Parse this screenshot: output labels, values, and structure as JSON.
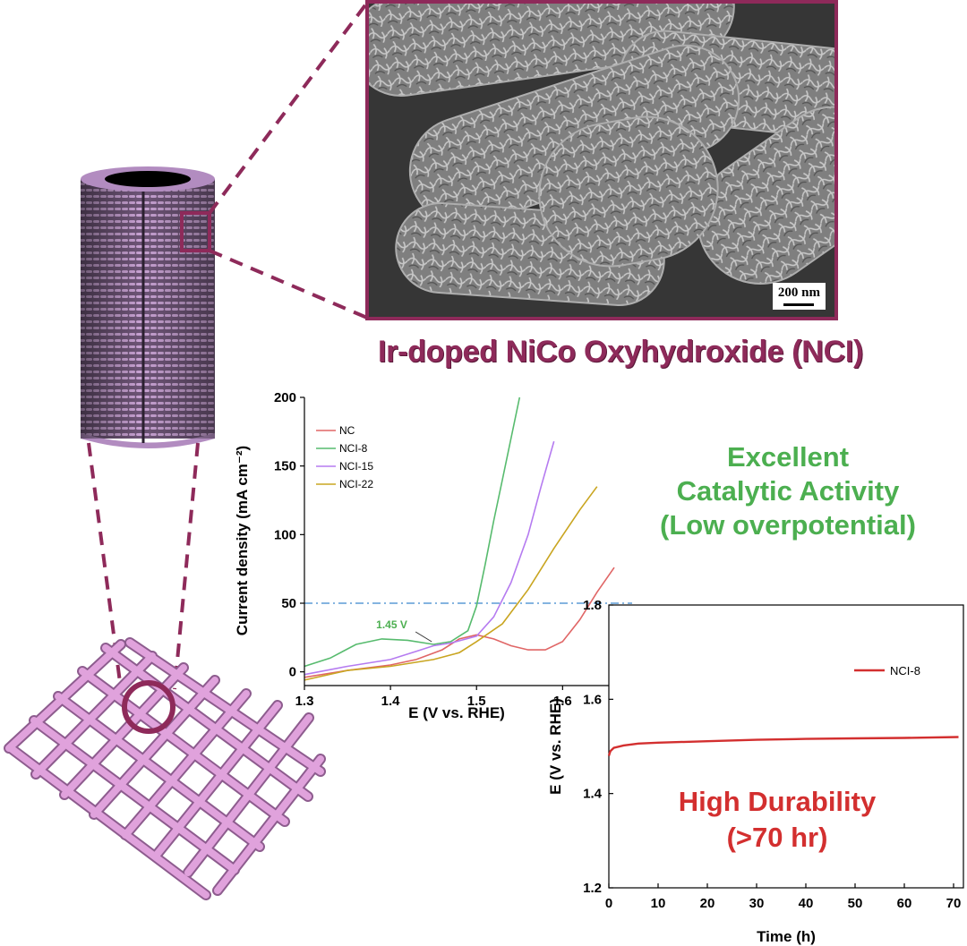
{
  "header": {
    "title": "Ir-doped NiCo Oxyhydroxide (NCI)",
    "scale_bar_label": "200 nm"
  },
  "callouts": {
    "activity_line1": "Excellent",
    "activity_line2": "Catalytic Activity",
    "activity_line3": "(Low overpotential)",
    "durability_line1": "High Durability",
    "durability_line2": "(>70 hr)"
  },
  "colors": {
    "accent": "#8e2a5a",
    "activity": "#4caf50",
    "durability": "#d32f2f",
    "NC": "#e06666",
    "NCI-8": "#57bb6e",
    "NCI-15": "#b57bf0",
    "NCI-22": "#c9a520",
    "reference_line": "#5b9bd5"
  },
  "chart_data": [
    {
      "type": "line",
      "xlabel": "E (V vs. RHE)",
      "ylabel": "Current density (mA cm⁻²)",
      "xlim": [
        1.3,
        1.66
      ],
      "ylim": [
        -10,
        200
      ],
      "xticks": [
        "1.3",
        "1.4",
        "1.5",
        "1.6"
      ],
      "yticks": [
        "0",
        "50",
        "100",
        "150",
        "200"
      ],
      "legend_position": "top-left",
      "reference_line_y": 50,
      "annotation": "1.45 V",
      "annotation_point": [
        1.45,
        20
      ],
      "series": [
        {
          "name": "NC",
          "color": "#e06666",
          "points": [
            [
              1.3,
              -4
            ],
            [
              1.35,
              1
            ],
            [
              1.4,
              5
            ],
            [
              1.43,
              9
            ],
            [
              1.46,
              16
            ],
            [
              1.48,
              24
            ],
            [
              1.5,
              27
            ],
            [
              1.52,
              24
            ],
            [
              1.54,
              19
            ],
            [
              1.56,
              16
            ],
            [
              1.58,
              16
            ],
            [
              1.6,
              22
            ],
            [
              1.62,
              38
            ],
            [
              1.64,
              58
            ],
            [
              1.66,
              76
            ]
          ]
        },
        {
          "name": "NCI-8",
          "color": "#57bb6e",
          "points": [
            [
              1.3,
              4
            ],
            [
              1.33,
              10
            ],
            [
              1.36,
              20
            ],
            [
              1.39,
              24
            ],
            [
              1.42,
              23
            ],
            [
              1.45,
              20
            ],
            [
              1.47,
              22
            ],
            [
              1.49,
              30
            ],
            [
              1.5,
              48
            ],
            [
              1.51,
              78
            ],
            [
              1.52,
              110
            ],
            [
              1.53,
              140
            ],
            [
              1.54,
              170
            ],
            [
              1.55,
              200
            ]
          ]
        },
        {
          "name": "NCI-15",
          "color": "#b57bf0",
          "points": [
            [
              1.3,
              -2
            ],
            [
              1.35,
              4
            ],
            [
              1.4,
              9
            ],
            [
              1.43,
              15
            ],
            [
              1.45,
              19
            ],
            [
              1.47,
              21
            ],
            [
              1.5,
              26
            ],
            [
              1.52,
              40
            ],
            [
              1.54,
              65
            ],
            [
              1.56,
              100
            ],
            [
              1.575,
              135
            ],
            [
              1.59,
              168
            ]
          ]
        },
        {
          "name": "NCI-22",
          "color": "#c9a520",
          "points": [
            [
              1.3,
              -6
            ],
            [
              1.35,
              1
            ],
            [
              1.4,
              4
            ],
            [
              1.45,
              9
            ],
            [
              1.48,
              14
            ],
            [
              1.5,
              22
            ],
            [
              1.53,
              35
            ],
            [
              1.56,
              60
            ],
            [
              1.59,
              90
            ],
            [
              1.62,
              118
            ],
            [
              1.64,
              135
            ]
          ]
        }
      ]
    },
    {
      "type": "line",
      "xlabel": "Time (h)",
      "ylabel": "E (V vs. RHE)",
      "xlim": [
        0,
        72
      ],
      "ylim": [
        1.2,
        1.8
      ],
      "xticks": [
        "0",
        "10",
        "20",
        "30",
        "40",
        "50",
        "60",
        "70"
      ],
      "yticks": [
        "1.2",
        "1.4",
        "1.6",
        "1.8"
      ],
      "legend_position": "top-right",
      "series": [
        {
          "name": "NCI-8",
          "color": "#d32f2f",
          "points": [
            [
              0,
              1.48
            ],
            [
              0.3,
              1.49
            ],
            [
              1,
              1.497
            ],
            [
              3,
              1.502
            ],
            [
              6,
              1.506
            ],
            [
              10,
              1.508
            ],
            [
              20,
              1.511
            ],
            [
              30,
              1.514
            ],
            [
              40,
              1.516
            ],
            [
              50,
              1.517
            ],
            [
              60,
              1.518
            ],
            [
              71,
              1.52
            ]
          ]
        }
      ]
    }
  ]
}
